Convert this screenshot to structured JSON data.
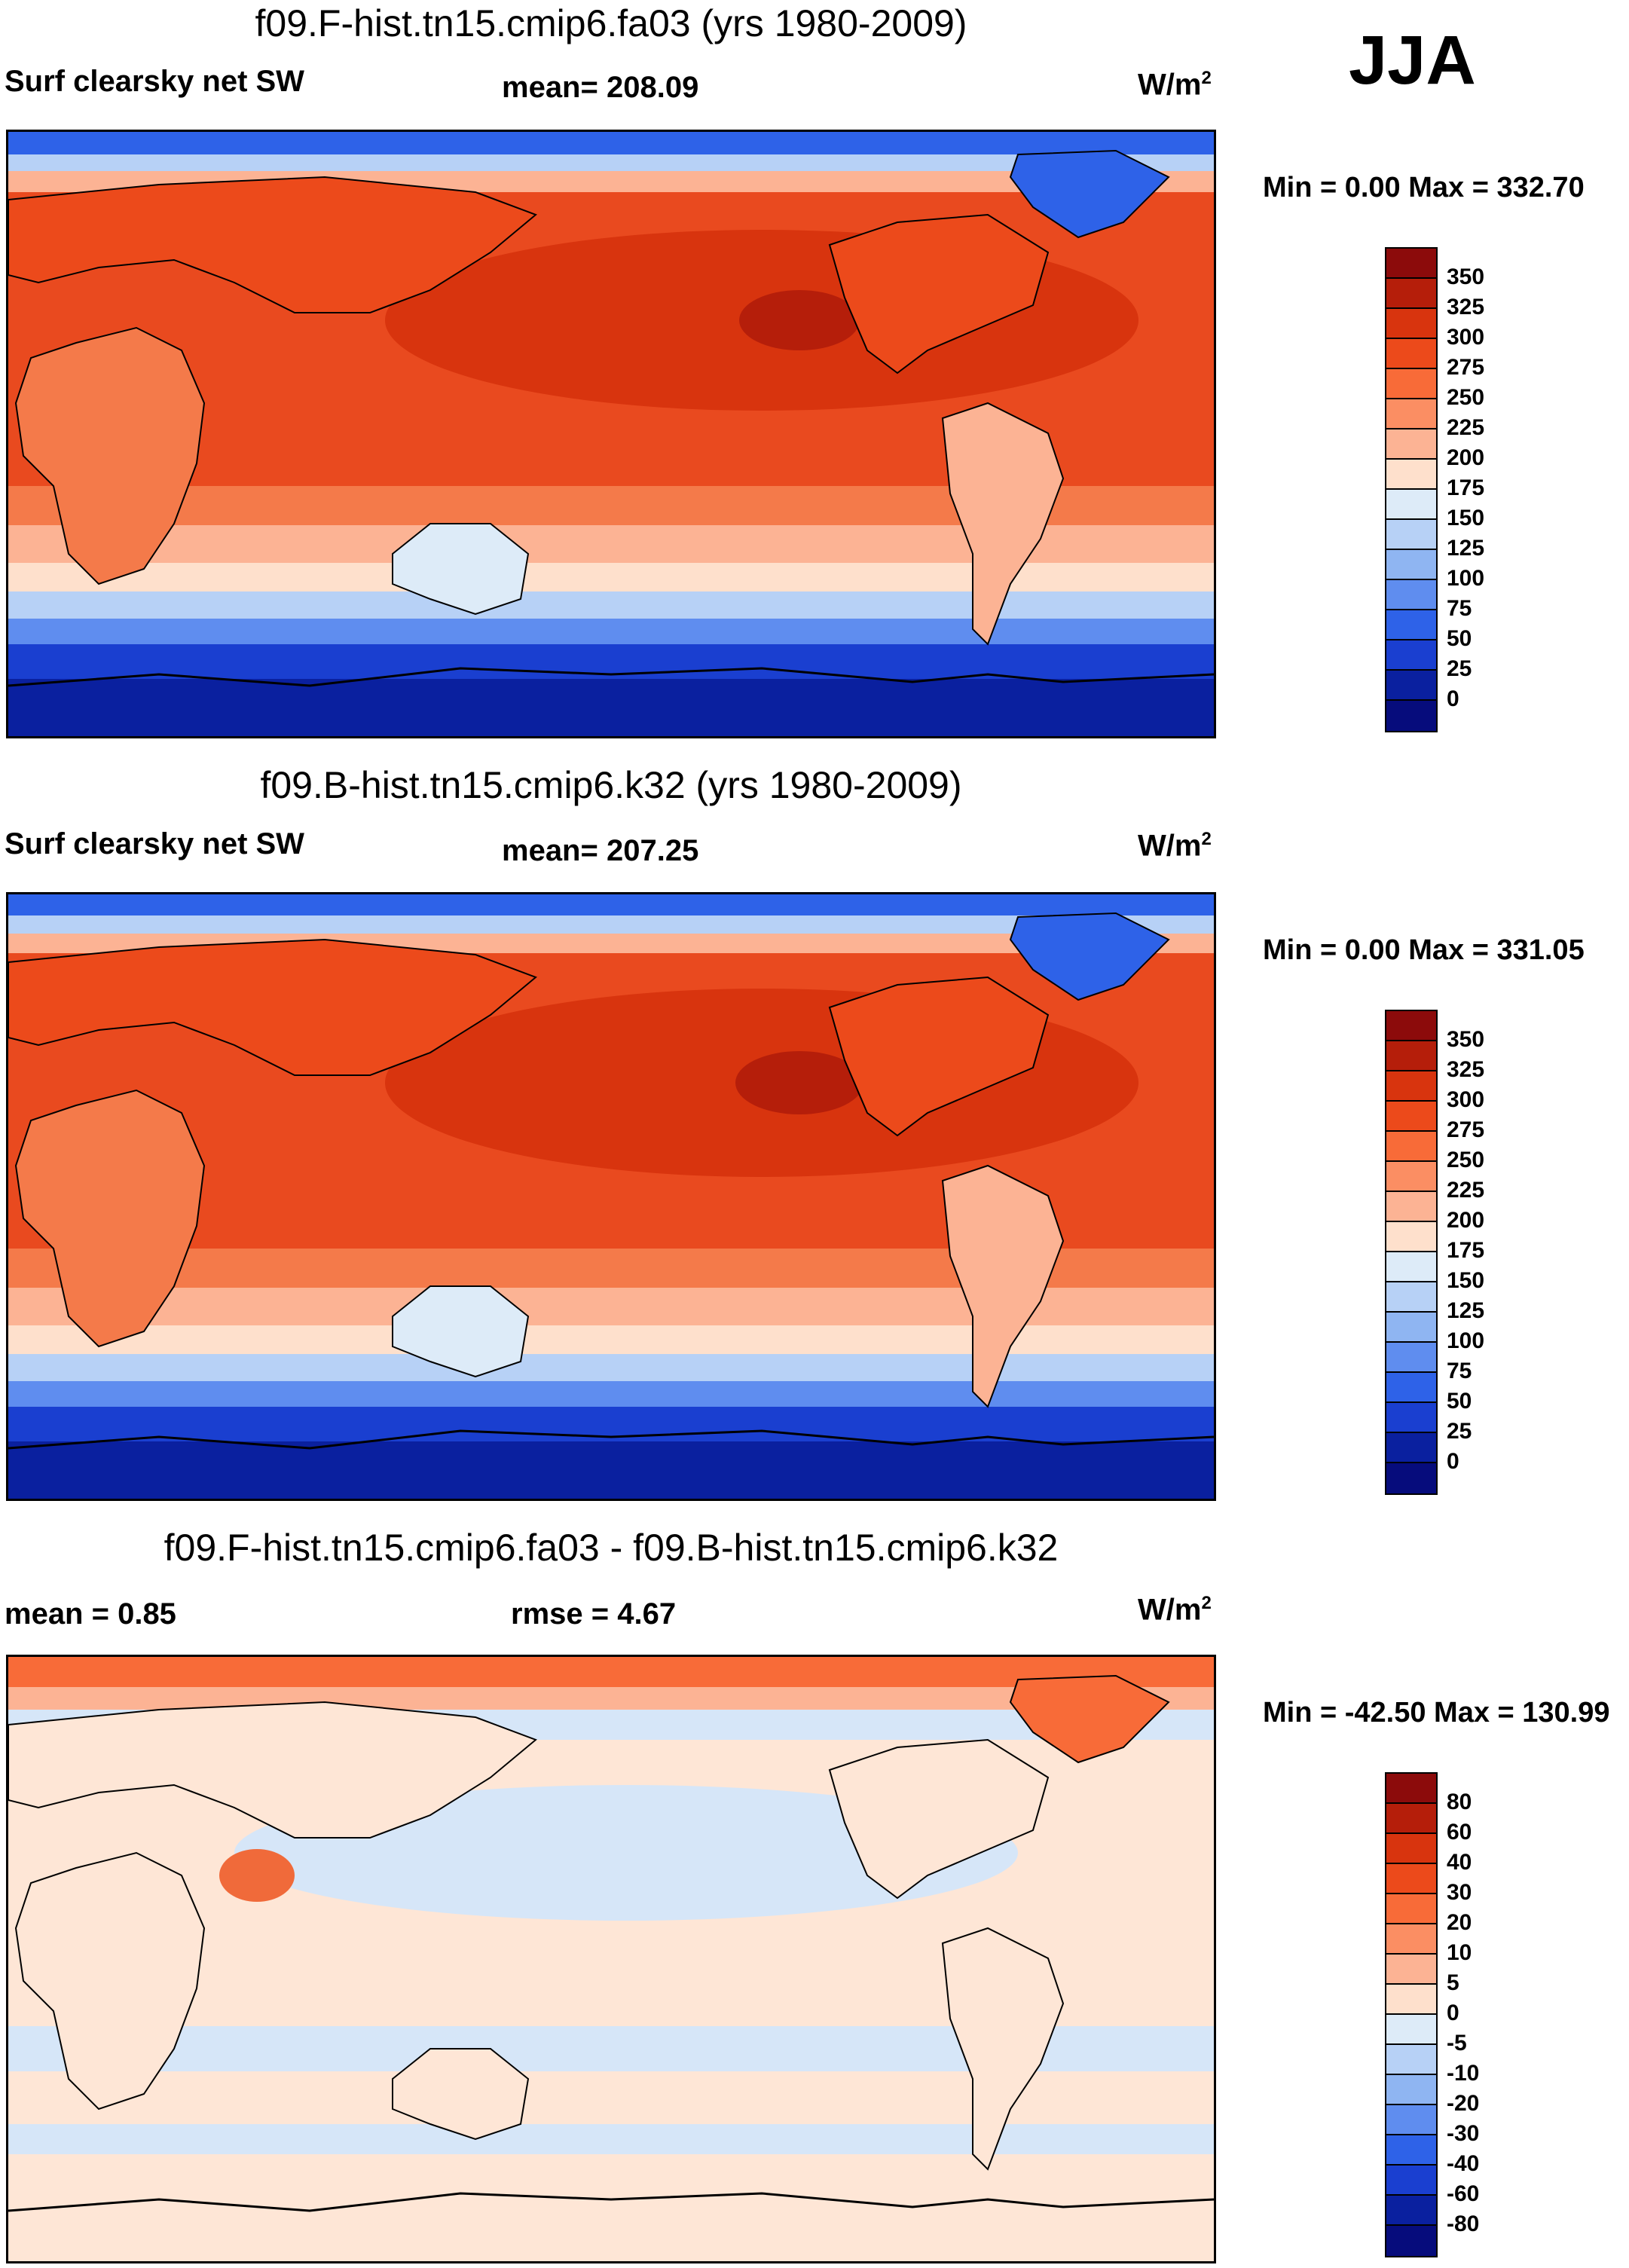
{
  "season": "JJA",
  "panels": [
    {
      "title": "f09.F-hist.tn15.cmip6.fa03 (yrs 1980-2009)",
      "variable": "Surf clearsky net SW",
      "stat": "mean= 208.09",
      "units": "W/m",
      "units_sup": "2",
      "minmax": "Min =   0.00 Max = 332.70",
      "colorbar_labels": [
        "350",
        "325",
        "300",
        "275",
        "250",
        "225",
        "200",
        "175",
        "150",
        "125",
        "100",
        "75",
        "50",
        "25",
        "0"
      ],
      "colorbar_colors": [
        "#8c0b0b",
        "#b51e0a",
        "#d8340e",
        "#ec4a1b",
        "#f86b38",
        "#fb8e63",
        "#fcb394",
        "#fee0cc",
        "#ddebf8",
        "#b7d1f6",
        "#8fb5f2",
        "#5f8def",
        "#2e62e8",
        "#1a3fd0",
        "#0a209f",
        "#060c7c"
      ]
    },
    {
      "title": "f09.B-hist.tn15.cmip6.k32 (yrs 1980-2009)",
      "variable": "Surf clearsky net SW",
      "stat": "mean= 207.25",
      "units": "W/m",
      "units_sup": "2",
      "minmax": "Min =   0.00 Max = 331.05",
      "colorbar_labels": [
        "350",
        "325",
        "300",
        "275",
        "250",
        "225",
        "200",
        "175",
        "150",
        "125",
        "100",
        "75",
        "50",
        "25",
        "0"
      ],
      "colorbar_colors": [
        "#8c0b0b",
        "#b51e0a",
        "#d8340e",
        "#ec4a1b",
        "#f86b38",
        "#fb8e63",
        "#fcb394",
        "#fee0cc",
        "#ddebf8",
        "#b7d1f6",
        "#8fb5f2",
        "#5f8def",
        "#2e62e8",
        "#1a3fd0",
        "#0a209f",
        "#060c7c"
      ]
    },
    {
      "title": "f09.F-hist.tn15.cmip6.fa03 - f09.B-hist.tn15.cmip6.k32",
      "variable": "mean =   0.85",
      "stat": "rmse =   4.67",
      "units": "W/m",
      "units_sup": "2",
      "minmax": "Min = -42.50 Max = 130.99",
      "colorbar_labels": [
        "80",
        "60",
        "40",
        "30",
        "20",
        "10",
        "5",
        "0",
        "-5",
        "-10",
        "-20",
        "-30",
        "-40",
        "-60",
        "-80"
      ],
      "colorbar_colors": [
        "#8c0b0b",
        "#b51e0a",
        "#d8340e",
        "#ec4a1b",
        "#f86b38",
        "#fb8e63",
        "#fcb394",
        "#fee0cc",
        "#ddebf8",
        "#b7d1f6",
        "#8fb5f2",
        "#5f8def",
        "#2e62e8",
        "#1a3fd0",
        "#0a209f",
        "#060c7c"
      ]
    }
  ],
  "colors": {
    "ocean_trop": "#e94a1f",
    "ocean_core": "#d8340e",
    "ocean_sub": "#f47a4a",
    "ocean_mid": "#fcb394",
    "ocean_cream": "#fee0cc",
    "south_light": "#b7d1f6",
    "south_mid": "#5f8def",
    "south_dark": "#1a3fd0",
    "antarctic": "#0a209f",
    "diff_base": "#fee6d6",
    "diff_blue": "#d6e6f8",
    "diff_red": "#f06a3a"
  }
}
